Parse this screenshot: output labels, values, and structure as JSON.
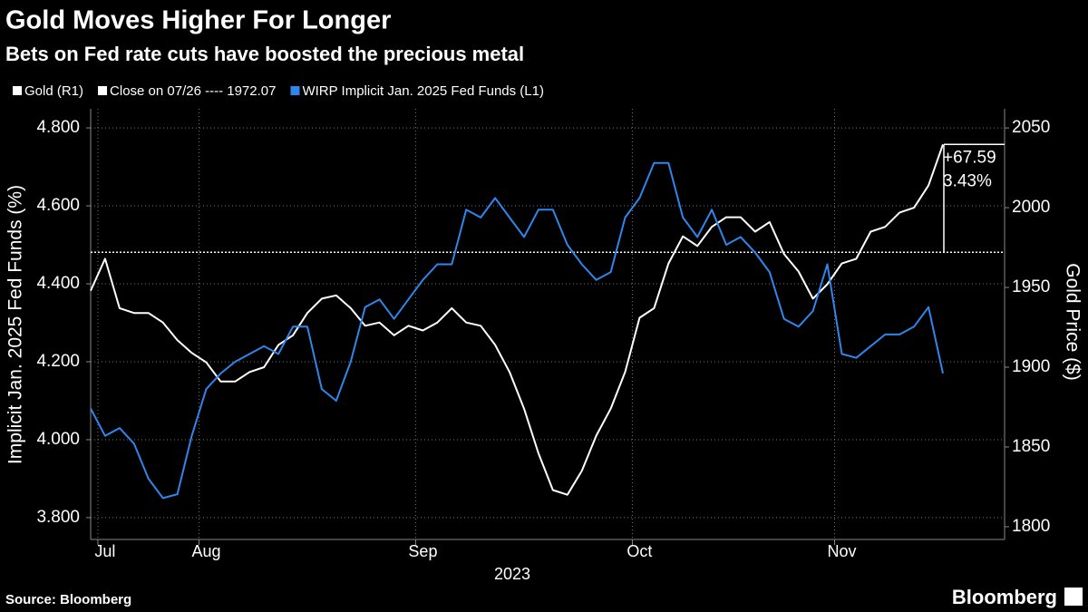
{
  "chart_data": {
    "type": "line",
    "title": "Gold Moves Higher For Longer",
    "subtitle": "Bets on Fed rate cuts have boosted the precious metal",
    "source": "Source: Bloomberg",
    "brand": "Bloomberg",
    "xlabel": "2023",
    "ylabel": "Implicit Jan. 2025 Fed Funds (%)",
    "y2label": "Gold Price ($)",
    "categories": [
      null,
      "Jul",
      null,
      null,
      null,
      null,
      null,
      null,
      "Aug",
      null,
      null,
      null,
      null,
      null,
      null,
      null,
      null,
      null,
      null,
      null,
      null,
      null,
      null,
      "Sep",
      null,
      null,
      null,
      null,
      null,
      null,
      null,
      null,
      null,
      null,
      null,
      null,
      null,
      null,
      "Oct",
      null,
      null,
      null,
      null,
      null,
      null,
      null,
      null,
      null,
      null,
      null,
      null,
      null,
      "Nov",
      null,
      null,
      null,
      null,
      null,
      null,
      null
    ],
    "ylim": [
      3.744,
      4.849
    ],
    "yticks": [
      {
        "value": 3.8,
        "label": "3.800"
      },
      {
        "value": 4.0,
        "label": "4.000"
      },
      {
        "value": 4.2,
        "label": "4.200"
      },
      {
        "value": 4.4,
        "label": "4.400"
      },
      {
        "value": 4.6,
        "label": "4.600"
      },
      {
        "value": 4.8,
        "label": "4.800"
      }
    ],
    "y2lim": [
      1792,
      2062
    ],
    "y2ticks": [
      1800,
      1850,
      1900,
      1950,
      2000,
      2050
    ],
    "grid": true,
    "reference_line": {
      "label": "Close on 07/26 ---- 1972.07",
      "value": 1972.07,
      "axis": "y2",
      "color": "#ffffff"
    },
    "annotations": [
      "+67.59",
      "3.43%"
    ],
    "series": [
      {
        "name": "Gold (R1)",
        "color": "#ffffff",
        "axis": "y2",
        "values": [
          1948,
          1968,
          1937,
          1934,
          1934,
          1928,
          1917,
          1909,
          1903,
          1891,
          1891,
          1897,
          1900,
          1914,
          1920,
          1934,
          1943,
          1945,
          1937,
          1926,
          1928,
          1920,
          1926,
          1923,
          1928,
          1937,
          1928,
          1926,
          1914,
          1897,
          1874,
          1846,
          1823,
          1820,
          1835,
          1857,
          1874,
          1897,
          1931,
          1937,
          1965,
          1982,
          1976,
          1988,
          1994,
          1994,
          1985,
          1991,
          1971,
          1960,
          1943,
          1952,
          1965,
          1968,
          1985,
          1988,
          1997,
          2000,
          2014,
          2039.66
        ]
      },
      {
        "name": "WIRP Implicit Jan. 2025 Fed Funds (L1)",
        "color": "#2f86eb",
        "axis": "y",
        "values": [
          4.08,
          4.01,
          4.03,
          3.99,
          3.9,
          3.85,
          3.86,
          4.01,
          4.13,
          4.17,
          4.2,
          4.22,
          4.24,
          4.22,
          4.29,
          4.29,
          4.13,
          4.1,
          4.2,
          4.34,
          4.36,
          4.31,
          4.36,
          4.41,
          4.45,
          4.45,
          4.59,
          4.57,
          4.62,
          4.57,
          4.52,
          4.59,
          4.59,
          4.5,
          4.45,
          4.41,
          4.43,
          4.57,
          4.62,
          4.71,
          4.71,
          4.57,
          4.52,
          4.59,
          4.5,
          4.52,
          4.48,
          4.43,
          4.31,
          4.29,
          4.33,
          4.45,
          4.22,
          4.21,
          4.24,
          4.27,
          4.27,
          4.29,
          4.34,
          4.17
        ]
      }
    ]
  }
}
